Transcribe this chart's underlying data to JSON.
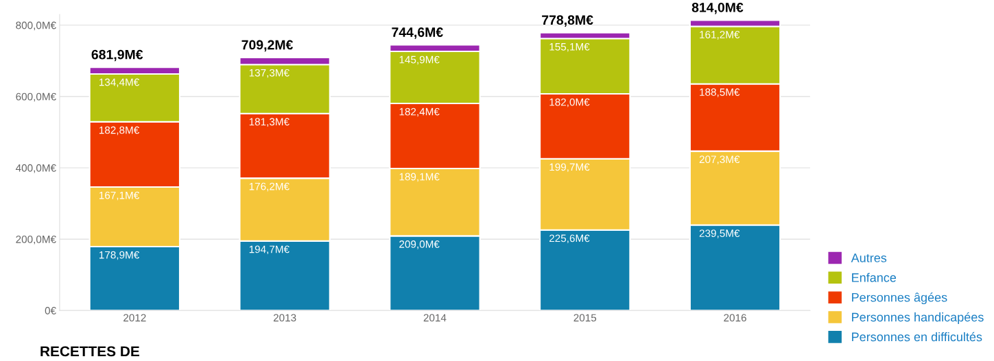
{
  "chart_data": {
    "type": "bar",
    "stacked": true,
    "categories": [
      "2012",
      "2013",
      "2014",
      "2015",
      "2016"
    ],
    "series": [
      {
        "name": "Personnes en difficultés",
        "color": "#1180ad",
        "values": [
          178.9,
          194.7,
          209.0,
          225.6,
          239.5
        ],
        "value_labels": [
          "178,9M€",
          "194,7M€",
          "209,0M€",
          "225,6M€",
          "239,5M€"
        ]
      },
      {
        "name": "Personnes handicapées",
        "color": "#f5c63a",
        "values": [
          167.1,
          176.2,
          189.1,
          199.7,
          207.3
        ],
        "value_labels": [
          "167,1M€",
          "176,2M€",
          "189,1M€",
          "199,7M€",
          "207,3M€"
        ]
      },
      {
        "name": "Personnes âgées",
        "color": "#ef3a00",
        "values": [
          182.8,
          181.3,
          182.4,
          182.0,
          188.5
        ],
        "value_labels": [
          "182,8M€",
          "181,3M€",
          "182,4M€",
          "182,0M€",
          "188,5M€"
        ]
      },
      {
        "name": "Enfance",
        "color": "#b5c30f",
        "values": [
          134.4,
          137.3,
          145.9,
          155.1,
          161.2
        ],
        "value_labels": [
          "134,4M€",
          "137,3M€",
          "145,9M€",
          "155,1M€",
          "161,2M€"
        ]
      },
      {
        "name": "Autres",
        "color": "#9c27b0",
        "values": [
          18.7,
          19.7,
          18.2,
          16.4,
          17.5
        ]
      }
    ],
    "totals": [
      "681,9M€",
      "709,2M€",
      "744,6M€",
      "778,8M€",
      "814,0M€"
    ],
    "ylim": [
      0,
      830
    ],
    "yticks": [
      {
        "value": 0,
        "label": "0€"
      },
      {
        "value": 200,
        "label": "200,0M€"
      },
      {
        "value": 400,
        "label": "400,0M€"
      },
      {
        "value": 600,
        "label": "600,0M€"
      },
      {
        "value": 800,
        "label": "800,0M€"
      }
    ],
    "grid": "y",
    "legend": "bottom right",
    "annotations": [
      "RECETTES DE"
    ]
  }
}
